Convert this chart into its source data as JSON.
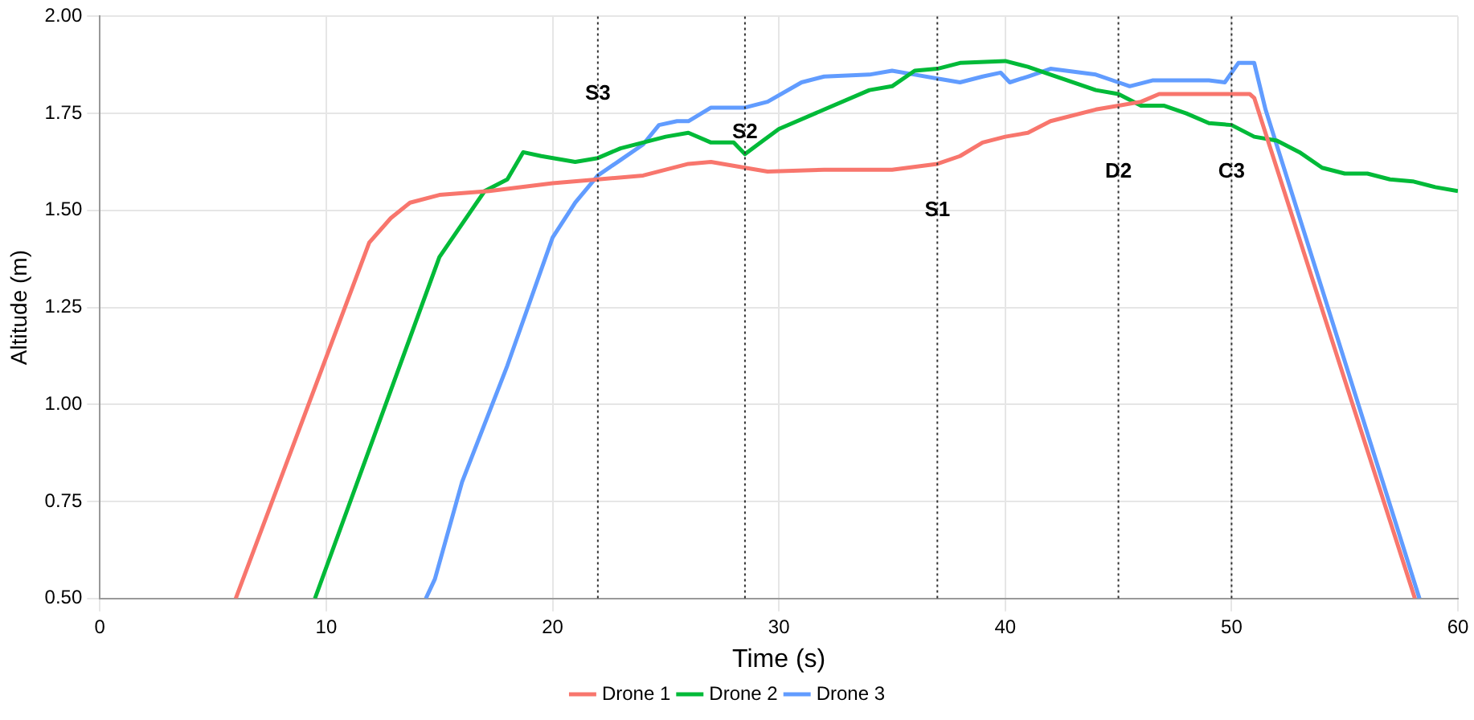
{
  "chart_data": {
    "type": "line",
    "xlabel": "Time (s)",
    "ylabel": "Altitude (m)",
    "xlim": [
      0,
      60
    ],
    "xticks": [
      0,
      10,
      20,
      30,
      40,
      50,
      60
    ],
    "ylim": [
      0.5,
      2.0
    ],
    "yticks": [
      {
        "value": 0.5,
        "label": "0.50"
      },
      {
        "value": 0.75,
        "label": "0.75"
      },
      {
        "value": 1.0,
        "label": "1.00"
      },
      {
        "value": 1.25,
        "label": "1.25"
      },
      {
        "value": 1.5,
        "label": "1.50"
      },
      {
        "value": 1.75,
        "label": "1.75"
      },
      {
        "value": 2.0,
        "label": "2.00"
      }
    ],
    "grid": true,
    "legend": "bottom",
    "marker": "none",
    "line_style": "solid",
    "series": [
      {
        "name": "Drone 1",
        "color": "#f8766d",
        "x": [
          6.0,
          11.9,
          12.85,
          13.7,
          15,
          17.2,
          20,
          22,
          24,
          26,
          27,
          28.5,
          29.5,
          32,
          35,
          37,
          38,
          39,
          40,
          41,
          42,
          44,
          45,
          46,
          46.8,
          49,
          50.8,
          51,
          58.1
        ],
        "values": [
          0.5,
          1.417,
          1.48,
          1.52,
          1.54,
          1.55,
          1.57,
          1.58,
          1.59,
          1.62,
          1.625,
          1.61,
          1.6,
          1.605,
          1.605,
          1.62,
          1.64,
          1.675,
          1.69,
          1.7,
          1.73,
          1.76,
          1.77,
          1.78,
          1.8,
          1.8,
          1.8,
          1.79,
          0.5
        ]
      },
      {
        "name": "Drone 2",
        "color": "#00ba38",
        "x": [
          9.5,
          15,
          17,
          18,
          18.7,
          19.5,
          21,
          22,
          23,
          25,
          26,
          27,
          28,
          28.5,
          29.3,
          30,
          32,
          34,
          35,
          36,
          37,
          38,
          40,
          41,
          42,
          44,
          45,
          46,
          47,
          48,
          49,
          50,
          51,
          52,
          53,
          54,
          55,
          56,
          57,
          58,
          59,
          60
        ],
        "values": [
          0.5,
          1.38,
          1.55,
          1.58,
          1.65,
          1.64,
          1.625,
          1.635,
          1.66,
          1.69,
          1.7,
          1.675,
          1.675,
          1.645,
          1.68,
          1.71,
          1.76,
          1.81,
          1.82,
          1.86,
          1.865,
          1.88,
          1.885,
          1.87,
          1.85,
          1.81,
          1.8,
          1.77,
          1.77,
          1.75,
          1.725,
          1.72,
          1.69,
          1.68,
          1.65,
          1.61,
          1.595,
          1.595,
          1.58,
          1.575,
          1.56,
          1.55
        ]
      },
      {
        "name": "Drone 3",
        "color": "#619cff",
        "x": [
          14.4,
          14.8,
          16,
          18,
          20,
          21,
          22,
          23,
          24,
          24.7,
          25.5,
          26,
          27,
          28.5,
          29.5,
          31,
          32,
          34,
          35,
          36,
          37,
          38,
          39,
          39.8,
          40.2,
          41,
          42,
          44,
          45,
          45.5,
          46.5,
          49,
          49.7,
          50.3,
          51,
          51.5,
          58.3
        ],
        "values": [
          0.5,
          0.55,
          0.8,
          1.1,
          1.43,
          1.52,
          1.59,
          1.63,
          1.67,
          1.72,
          1.73,
          1.73,
          1.765,
          1.765,
          1.78,
          1.83,
          1.845,
          1.85,
          1.86,
          1.85,
          1.84,
          1.83,
          1.845,
          1.855,
          1.83,
          1.845,
          1.865,
          1.85,
          1.83,
          1.82,
          1.835,
          1.835,
          1.83,
          1.88,
          1.88,
          1.76,
          0.5
        ]
      }
    ],
    "ref_lines": [
      {
        "axis": "x",
        "value": 22,
        "color": "#333333",
        "line_style": "dotted"
      },
      {
        "axis": "x",
        "value": 28.5,
        "color": "#333333",
        "line_style": "dotted"
      },
      {
        "axis": "x",
        "value": 37,
        "color": "#333333",
        "line_style": "dotted"
      },
      {
        "axis": "x",
        "value": 45,
        "color": "#333333",
        "line_style": "dotted"
      },
      {
        "axis": "x",
        "value": 50,
        "color": "#333333",
        "line_style": "dotted"
      }
    ],
    "annotations": [
      {
        "text": "S3",
        "x": 22,
        "y": 1.8
      },
      {
        "text": "S2",
        "x": 28.5,
        "y": 1.7
      },
      {
        "text": "S1",
        "x": 37,
        "y": 1.5
      },
      {
        "text": "D2",
        "x": 45,
        "y": 1.6
      },
      {
        "text": "C3",
        "x": 50,
        "y": 1.6
      }
    ]
  }
}
